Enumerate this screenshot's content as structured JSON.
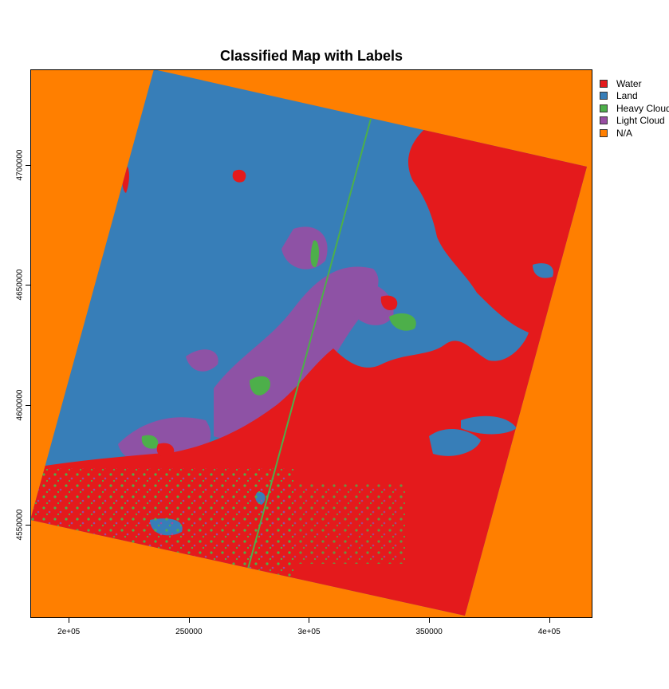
{
  "title": "Classified Map with Labels",
  "x_axis": {
    "range": [
      184000,
      418000
    ],
    "ticks": [
      {
        "value": 200000,
        "label": "2e+05"
      },
      {
        "value": 250000,
        "label": "250000"
      },
      {
        "value": 300000,
        "label": "3e+05"
      },
      {
        "value": 350000,
        "label": "350000"
      },
      {
        "value": 400000,
        "label": "4e+05"
      }
    ]
  },
  "y_axis": {
    "range": [
      4511000,
      4740000
    ],
    "ticks": [
      {
        "value": 4550000,
        "label": "4550000"
      },
      {
        "value": 4600000,
        "label": "4600000"
      },
      {
        "value": 4650000,
        "label": "4650000"
      },
      {
        "value": 4700000,
        "label": "4700000"
      }
    ]
  },
  "legend": [
    {
      "label": "Water",
      "color": "#e41a1c"
    },
    {
      "label": "Land",
      "color": "#377eb8"
    },
    {
      "label": "Heavy Cloud",
      "color": "#4daf4a"
    },
    {
      "label": "Light Cloud",
      "color": "#984ea3"
    },
    {
      "label": "N/A",
      "color": "#ff7f00"
    }
  ],
  "map": {
    "background_class": "N/A",
    "scene_class_left_right": [
      "Land",
      "Water"
    ]
  }
}
